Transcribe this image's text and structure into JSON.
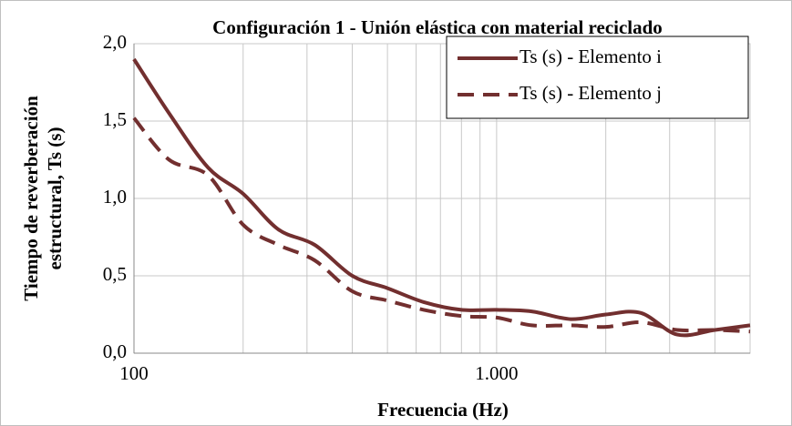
{
  "chart_data": {
    "type": "line",
    "title": "Configuración 1 - Unión elástica con material reciclado",
    "xlabel": "Frecuencia (Hz)",
    "ylabel": [
      "Tiempo de reverberación",
      "estructural, Ts (s)"
    ],
    "x": [
      100,
      125,
      160,
      200,
      250,
      315,
      400,
      500,
      630,
      800,
      1000,
      1250,
      1600,
      2000,
      2500,
      3150,
      4000,
      5000
    ],
    "series": [
      {
        "name": "Ts (s) - Elemento i",
        "color": "#722f2f",
        "dash": "solid",
        "values": [
          1.9,
          1.55,
          1.2,
          1.03,
          0.8,
          0.7,
          0.5,
          0.42,
          0.33,
          0.28,
          0.28,
          0.27,
          0.22,
          0.25,
          0.26,
          0.12,
          0.15,
          0.18
        ]
      },
      {
        "name": "Ts (s) - Elemento j",
        "color": "#722f2f",
        "dash": "dashed",
        "values": [
          1.52,
          1.25,
          1.15,
          0.83,
          0.7,
          0.6,
          0.4,
          0.34,
          0.28,
          0.24,
          0.23,
          0.18,
          0.18,
          0.17,
          0.2,
          0.15,
          0.15,
          0.14
        ]
      }
    ],
    "xscale": "log",
    "xlim": [
      100,
      5000
    ],
    "xticks": [
      100,
      {
        "value": 1000,
        "label": "1.000"
      }
    ],
    "xminorticks": [
      200,
      300,
      400,
      500,
      600,
      700,
      800,
      900,
      2000,
      3000,
      4000,
      5000
    ],
    "ylim": [
      0,
      2
    ],
    "yticks": [
      {
        "value": 0,
        "label": "0,0"
      },
      {
        "value": 0.5,
        "label": "0,5"
      },
      {
        "value": 1,
        "label": "1,0"
      },
      {
        "value": 1.5,
        "label": "1,5"
      },
      {
        "value": 2,
        "label": "2,0"
      }
    ],
    "grid": true,
    "legend": "top-right"
  }
}
